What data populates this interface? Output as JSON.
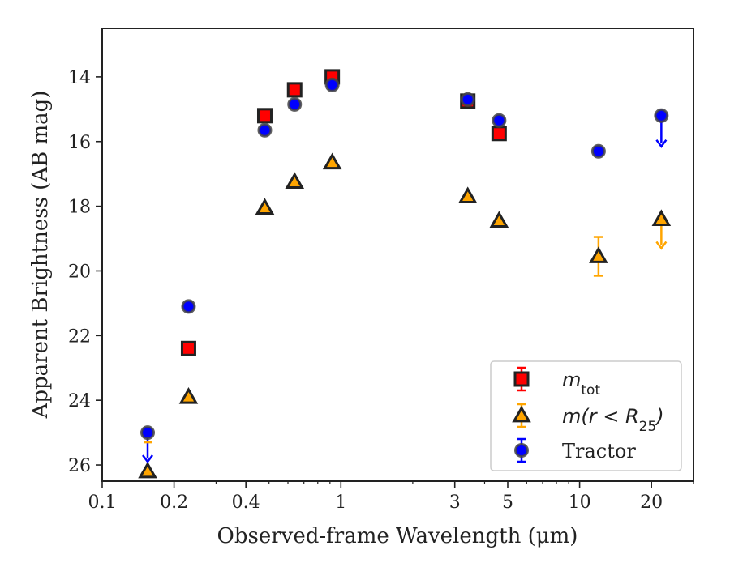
{
  "chart_data": {
    "type": "scatter",
    "xlabel": "Observed-frame Wavelength (μm)",
    "ylabel": "Apparent Brightness (AB mag)",
    "x_scale": "log",
    "xlim": [
      0.1,
      30
    ],
    "ylim": [
      26.5,
      12.5
    ],
    "y_inverted": true,
    "x_ticks": [
      0.1,
      0.2,
      0.4,
      1,
      3,
      5,
      10,
      20
    ],
    "x_tick_labels": [
      "0.1",
      "0.2",
      "0.4",
      "1",
      "3",
      "5",
      "10",
      "20"
    ],
    "y_ticks": [
      14,
      16,
      18,
      20,
      22,
      24,
      26
    ],
    "y_tick_labels": [
      "14",
      "16",
      "18",
      "20",
      "22",
      "24",
      "26"
    ],
    "grid": false,
    "legend_position": "bottom-right",
    "series": [
      {
        "name": "m_tot",
        "legend_label": {
          "main": "m",
          "sub": "tot"
        },
        "marker": "square",
        "color": "#ff0000",
        "edge_color": "#222222",
        "points": [
          {
            "x": 0.23,
            "y": 22.4,
            "err": 0.08
          },
          {
            "x": 0.48,
            "y": 15.2,
            "err": 0.05
          },
          {
            "x": 0.64,
            "y": 14.4,
            "err": 0.05
          },
          {
            "x": 0.92,
            "y": 14.0,
            "err": 0.05
          },
          {
            "x": 3.4,
            "y": 14.75,
            "err": 0.05
          },
          {
            "x": 4.6,
            "y": 15.75,
            "err": 0.05
          }
        ]
      },
      {
        "name": "m(r < R25)",
        "legend_label": {
          "main": "m(r < R",
          "sub": "25",
          "tail": ")"
        },
        "marker": "triangle",
        "color": "#ffa500",
        "edge_color": "#222222",
        "points": [
          {
            "x": 0.155,
            "y": 26.2,
            "err": 0.0
          },
          {
            "x": 0.23,
            "y": 23.9,
            "err": 0.05
          },
          {
            "x": 0.48,
            "y": 18.05,
            "err": 0.05
          },
          {
            "x": 0.64,
            "y": 17.25,
            "err": 0.05
          },
          {
            "x": 0.92,
            "y": 16.65,
            "err": 0.05
          },
          {
            "x": 3.4,
            "y": 17.7,
            "err": 0.05
          },
          {
            "x": 4.6,
            "y": 18.45,
            "err": 0.05
          },
          {
            "x": 12.0,
            "y": 19.55,
            "err": 0.6
          },
          {
            "x": 22.0,
            "y": 18.4,
            "err": 0.0,
            "upper_limit_arrow": true,
            "arrow_to": 19.3
          }
        ]
      },
      {
        "name": "Tractor",
        "legend_label": {
          "main": "Tractor"
        },
        "marker": "circle",
        "color": "#0000ff",
        "edge_color": "#444444",
        "points": [
          {
            "x": 0.155,
            "y": 25.0,
            "err": 0.0,
            "upper_limit_arrow": true,
            "arrow_to": 25.9
          },
          {
            "x": 0.23,
            "y": 21.1,
            "err": 0.05
          },
          {
            "x": 0.48,
            "y": 15.65,
            "err": 0.05
          },
          {
            "x": 0.64,
            "y": 14.85,
            "err": 0.05
          },
          {
            "x": 0.92,
            "y": 14.25,
            "err": 0.05
          },
          {
            "x": 3.4,
            "y": 14.7,
            "err": 0.05
          },
          {
            "x": 4.6,
            "y": 15.35,
            "err": 0.05
          },
          {
            "x": 12.0,
            "y": 16.3,
            "err": 0.05
          },
          {
            "x": 22.0,
            "y": 15.2,
            "err": 0.0,
            "upper_limit_arrow": true,
            "arrow_to": 16.15
          }
        ]
      }
    ]
  }
}
